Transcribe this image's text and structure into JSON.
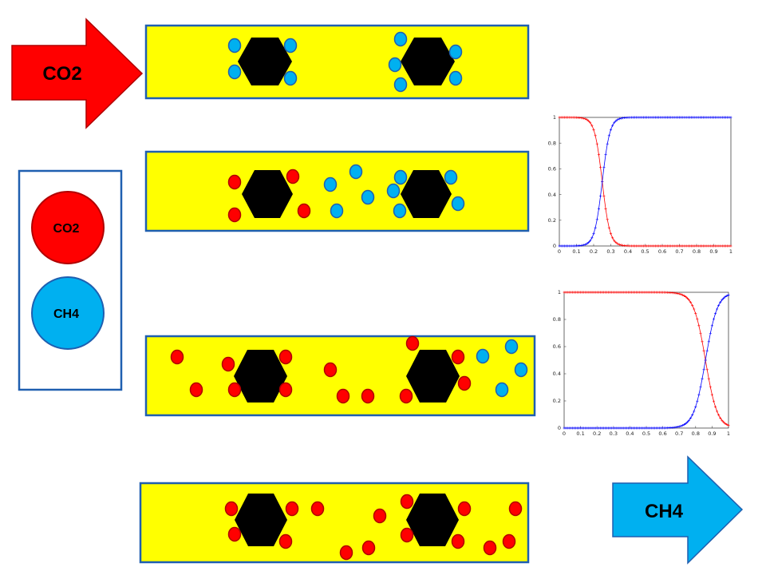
{
  "inlet_arrow": {
    "label": "CO2",
    "color": "#ff0000"
  },
  "outlet_arrow": {
    "label": "CH4",
    "color": "#00b0f0"
  },
  "legend": [
    {
      "label": "CO2",
      "color": "#ff0000"
    },
    {
      "label": "CH4",
      "color": "#00b0f0"
    }
  ],
  "colors": {
    "column": "#ffff00",
    "column_border": "#1f5fb0",
    "particle": "#000000",
    "co2": "#ff0000",
    "ch4": "#00b0f0"
  },
  "icons": {
    "adsorbent": "black-hexagon",
    "molecule": "circle"
  },
  "chart_data": [
    {
      "type": "line",
      "x_ticks": [
        "0",
        "0.1",
        "0.2",
        "0.3",
        "0.4",
        "0.5",
        "0.6",
        "0.7",
        "0.8",
        "0.9",
        "1"
      ],
      "y_ticks": [
        "0",
        "0.2",
        "0.4",
        "0.6",
        "0.8",
        "1"
      ],
      "xlim": [
        0,
        1
      ],
      "ylim": [
        0,
        1
      ],
      "series": [
        {
          "color": "#ff0000",
          "marker": "+",
          "shape": "falling-sigmoid",
          "midpoint": 0.25,
          "x": [
            0,
            0.05,
            0.1,
            0.15,
            0.2,
            0.22,
            0.25,
            0.28,
            0.3,
            0.35,
            0.4,
            0.5,
            0.7,
            1
          ],
          "y": [
            1,
            1,
            1,
            0.99,
            0.9,
            0.75,
            0.5,
            0.25,
            0.1,
            0.01,
            0,
            0,
            0,
            0
          ]
        },
        {
          "color": "#0000ff",
          "marker": "+",
          "shape": "rising-sigmoid",
          "midpoint": 0.25,
          "x": [
            0,
            0.05,
            0.1,
            0.15,
            0.2,
            0.22,
            0.25,
            0.28,
            0.3,
            0.35,
            0.4,
            0.5,
            0.7,
            1
          ],
          "y": [
            0,
            0,
            0,
            0.01,
            0.1,
            0.25,
            0.5,
            0.75,
            0.9,
            0.99,
            1,
            1,
            1,
            1
          ]
        }
      ]
    },
    {
      "type": "line",
      "x_ticks": [
        "0",
        "0.1",
        "0.2",
        "0.3",
        "0.4",
        "0.5",
        "0.6",
        "0.7",
        "0.8",
        "0.9",
        "1"
      ],
      "y_ticks": [
        "0",
        "0.2",
        "0.4",
        "0.6",
        "0.8",
        "1"
      ],
      "xlim": [
        0,
        1
      ],
      "ylim": [
        0,
        1
      ],
      "series": [
        {
          "color": "#ff0000",
          "marker": "+",
          "shape": "falling-sigmoid",
          "midpoint": 0.86,
          "x": [
            0,
            0.2,
            0.4,
            0.6,
            0.7,
            0.75,
            0.8,
            0.85,
            0.9,
            0.95,
            1
          ],
          "y": [
            1,
            1,
            1,
            1,
            0.98,
            0.93,
            0.8,
            0.55,
            0.3,
            0.1,
            0.03
          ]
        },
        {
          "color": "#0000ff",
          "marker": "+",
          "shape": "rising-sigmoid",
          "midpoint": 0.86,
          "x": [
            0,
            0.2,
            0.4,
            0.6,
            0.7,
            0.75,
            0.8,
            0.85,
            0.9,
            0.95,
            1
          ],
          "y": [
            0,
            0,
            0,
            0,
            0.02,
            0.07,
            0.2,
            0.45,
            0.7,
            0.9,
            0.97
          ]
        }
      ]
    }
  ]
}
